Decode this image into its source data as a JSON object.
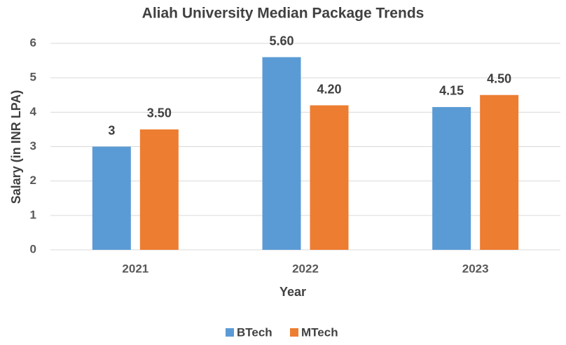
{
  "chart_data": {
    "type": "bar",
    "title": "Aliah University Median Package Trends",
    "x_label": "Year",
    "y_label": "Salary (in INR LPA)",
    "categories": [
      "2021",
      "2022",
      "2023"
    ],
    "series": [
      {
        "name": "BTech",
        "color": "#5b9bd5",
        "values": [
          3,
          5.6,
          4.15
        ],
        "value_labels": [
          "3",
          "5.60",
          "4.15"
        ]
      },
      {
        "name": "MTech",
        "color": "#ed7d31",
        "values": [
          3.5,
          4.2,
          4.5
        ],
        "value_labels": [
          "3.50",
          "4.20",
          "4.50"
        ]
      }
    ],
    "ylim": [
      0,
      6
    ],
    "yticks": [
      0,
      1,
      2,
      3,
      4,
      5,
      6
    ],
    "grid": true,
    "legend": "bottom"
  }
}
